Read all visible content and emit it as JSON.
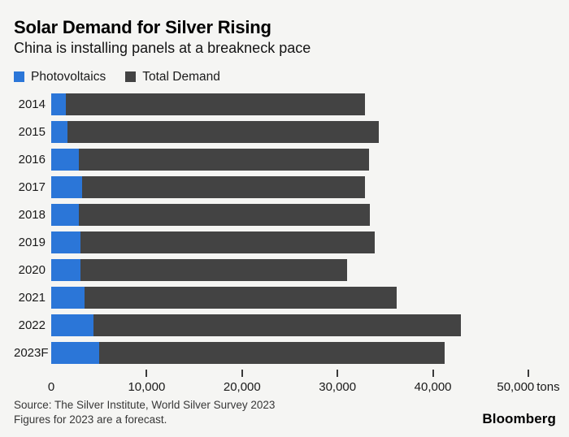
{
  "header": {
    "title": "Solar Demand for Silver Rising",
    "subtitle": "China is installing panels at a breakneck pace"
  },
  "legend": [
    {
      "label": "Photovoltaics",
      "color": "#2b76d8"
    },
    {
      "label": "Total Demand",
      "color": "#434343"
    }
  ],
  "chart_data": {
    "type": "bar",
    "orientation": "horizontal",
    "overlay_note": "Photovoltaics segment drawn at start of Total Demand bar; full bar length equals total demand",
    "categories": [
      "2014",
      "2015",
      "2016",
      "2017",
      "2018",
      "2019",
      "2020",
      "2021",
      "2022",
      "2023F"
    ],
    "series": [
      {
        "name": "Photovoltaics",
        "color": "#2b76d8",
        "values": [
          1500,
          1700,
          2900,
          3250,
          2900,
          3050,
          3100,
          3450,
          4400,
          5000
        ]
      },
      {
        "name": "Total Demand",
        "color": "#434343",
        "values": [
          32900,
          34300,
          33300,
          32900,
          33400,
          33900,
          31000,
          36200,
          42900,
          41200
        ]
      }
    ],
    "xlim": [
      0,
      50000
    ],
    "x_ticks": [
      0,
      10000,
      20000,
      30000,
      40000,
      50000
    ],
    "x_tick_labels": [
      "0",
      "10,000",
      "20,000",
      "30,000",
      "40,000",
      "50,000"
    ],
    "x_unit": "tons",
    "grid": false,
    "legend_position": "top-left",
    "title": "Solar Demand for Silver Rising",
    "subtitle": "China is installing panels at a breakneck pace"
  },
  "footer": {
    "source_line1": "Source: The Silver Institute, World Silver Survey 2023",
    "source_line2": "Figures for 2023 are a forecast.",
    "brand": "Bloomberg"
  },
  "colors": {
    "background": "#f5f5f3",
    "photovoltaics_blue": "#2b76d8",
    "total_demand_gray": "#434343",
    "tick": "#3a3a3a"
  }
}
